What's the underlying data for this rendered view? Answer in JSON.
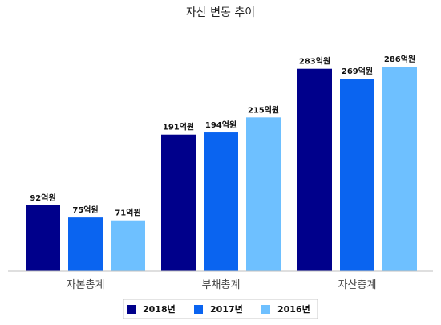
{
  "chart_data": {
    "type": "bar",
    "title": "자산 변동 추이",
    "categories": [
      "자본총계",
      "부채총계",
      "자산총계"
    ],
    "series": [
      {
        "name": "2018년",
        "color": "#00008b",
        "values": [
          92,
          191,
          283
        ],
        "labels": [
          "92억원",
          "191억원",
          "283억원"
        ]
      },
      {
        "name": "2017년",
        "color": "#0a64f0",
        "values": [
          75,
          194,
          269
        ],
        "labels": [
          "75억원",
          "194억원",
          "269억원"
        ]
      },
      {
        "name": "2016년",
        "color": "#6ec0ff",
        "values": [
          71,
          215,
          286
        ],
        "labels": [
          "71억원",
          "215억원",
          "286억원"
        ]
      }
    ],
    "xlabel": "",
    "ylabel": "",
    "ylim": [
      0,
      350
    ],
    "grid": false,
    "legend_position": "bottom-center"
  }
}
